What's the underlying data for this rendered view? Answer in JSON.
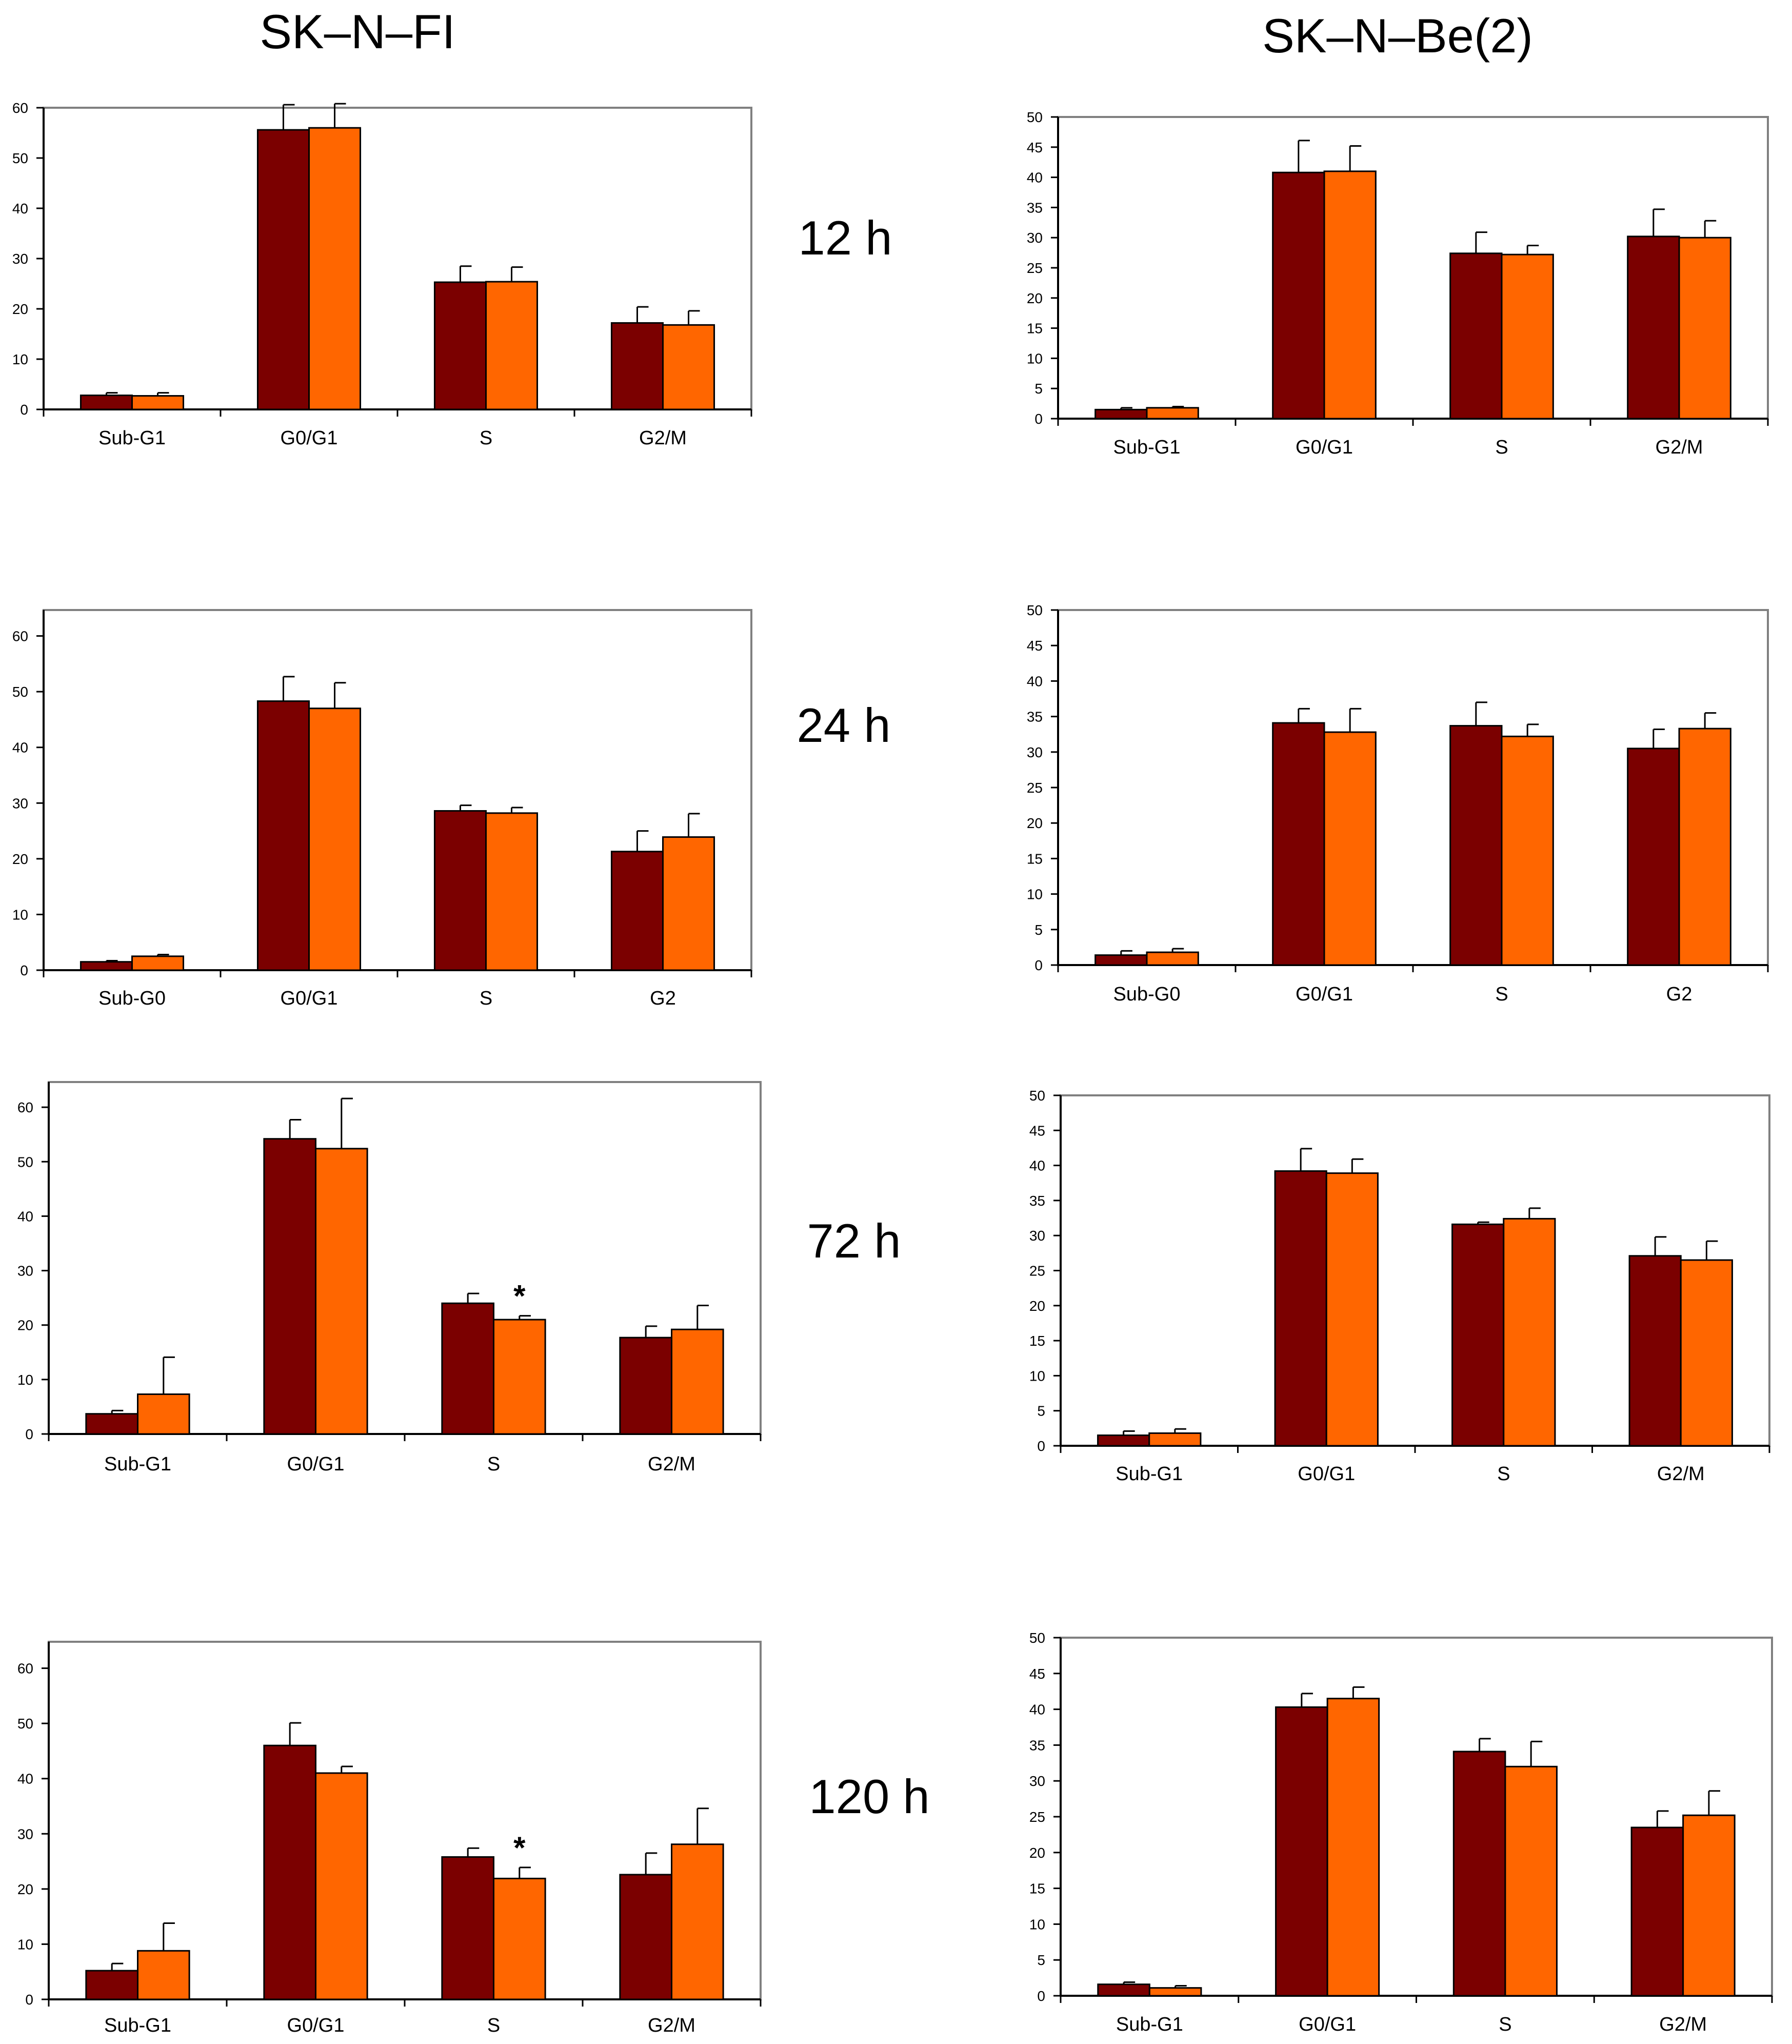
{
  "headers": {
    "left_title": "SK–N–FI",
    "right_title": "SK–N–Be(2)",
    "time_labels": [
      "12 h",
      "24 h",
      "72 h",
      "120 h"
    ]
  },
  "colors": {
    "series_a": "#7b0000",
    "series_b": "#ff6600",
    "axis": "#000000",
    "frame": "#808080"
  },
  "chart_data": [
    {
      "type": "bar",
      "panel": "SK–N–FI 12 h",
      "title": "",
      "xlabel": "",
      "ylabel": "",
      "ylim": [
        0,
        60
      ],
      "yticks": [
        0,
        10,
        20,
        30,
        40,
        50,
        60
      ],
      "categories": [
        "Sub-G1",
        "G0/G1",
        "S",
        "G2/M"
      ],
      "series": [
        {
          "name": "series 1 (dark red)",
          "values": [
            2.8,
            55.6,
            25.3,
            17.2
          ],
          "errors": [
            0.5,
            5.0,
            3.2,
            3.2
          ]
        },
        {
          "name": "series 2 (orange)",
          "values": [
            2.7,
            56.0,
            25.4,
            16.8
          ],
          "errors": [
            0.6,
            4.8,
            2.9,
            2.8
          ]
        }
      ],
      "annotations": []
    },
    {
      "type": "bar",
      "panel": "SK–N–Be(2) 12 h",
      "title": "",
      "xlabel": "",
      "ylabel": "",
      "ylim": [
        0,
        50
      ],
      "yticks": [
        0,
        5,
        10,
        15,
        20,
        25,
        30,
        35,
        40,
        45,
        50
      ],
      "categories": [
        "Sub-G1",
        "G0/G1",
        "S",
        "G2/M"
      ],
      "series": [
        {
          "name": "series 1 (dark red)",
          "values": [
            1.5,
            40.8,
            27.4,
            30.2
          ],
          "errors": [
            0.3,
            5.3,
            3.5,
            4.5
          ]
        },
        {
          "name": "series 2 (orange)",
          "values": [
            1.8,
            41.0,
            27.2,
            30.0
          ],
          "errors": [
            0.2,
            4.2,
            1.5,
            2.8
          ]
        }
      ],
      "annotations": []
    },
    {
      "type": "bar",
      "panel": "SK–N–FI 24 h",
      "title": "",
      "xlabel": "",
      "ylabel": "",
      "ylim": [
        0,
        65
      ],
      "yticks": [
        0,
        10,
        20,
        30,
        40,
        50,
        60
      ],
      "categories": [
        "Sub-G0",
        "G0/G1",
        "S",
        "G2"
      ],
      "series": [
        {
          "name": "series 1 (dark red)",
          "values": [
            1.5,
            48.3,
            28.6,
            21.3
          ],
          "errors": [
            0.2,
            4.4,
            1.0,
            3.7
          ]
        },
        {
          "name": "series 2 (orange)",
          "values": [
            2.5,
            47.0,
            28.2,
            23.9
          ],
          "errors": [
            0.3,
            4.6,
            1.0,
            4.2
          ]
        }
      ],
      "annotations": []
    },
    {
      "type": "bar",
      "panel": "SK–N–Be(2) 24 h",
      "title": "",
      "xlabel": "",
      "ylabel": "",
      "ylim": [
        0,
        50
      ],
      "yticks": [
        0,
        5,
        10,
        15,
        20,
        25,
        30,
        35,
        40,
        45,
        50
      ],
      "categories": [
        "Sub-G0",
        "G0/G1",
        "S",
        "G2"
      ],
      "series": [
        {
          "name": "series 1 (dark red)",
          "values": [
            1.4,
            34.1,
            33.7,
            30.5
          ],
          "errors": [
            0.6,
            2.0,
            3.3,
            2.7
          ]
        },
        {
          "name": "series 2 (orange)",
          "values": [
            1.8,
            32.8,
            32.2,
            33.3
          ],
          "errors": [
            0.5,
            3.3,
            1.7,
            2.2
          ]
        }
      ],
      "annotations": []
    },
    {
      "type": "bar",
      "panel": "SK–N–FI 72 h",
      "title": "",
      "xlabel": "",
      "ylabel": "",
      "ylim": [
        0,
        65
      ],
      "yticks": [
        0,
        10,
        20,
        30,
        40,
        50,
        60
      ],
      "categories": [
        "Sub-G1",
        "G0/G1",
        "S",
        "G2/M"
      ],
      "series": [
        {
          "name": "series 1 (dark red)",
          "values": [
            3.7,
            54.2,
            24.0,
            17.7
          ],
          "errors": [
            0.6,
            3.5,
            1.8,
            2.1
          ]
        },
        {
          "name": "series 2 (orange)",
          "values": [
            7.3,
            52.4,
            21.0,
            19.2
          ],
          "errors": [
            6.8,
            9.2,
            0.7,
            4.4
          ]
        }
      ],
      "annotations": [
        {
          "category": "S",
          "series": 1,
          "text": "*"
        }
      ]
    },
    {
      "type": "bar",
      "panel": "SK–N–Be(2) 72 h",
      "title": "",
      "xlabel": "",
      "ylabel": "",
      "ylim": [
        0,
        50
      ],
      "yticks": [
        0,
        5,
        10,
        15,
        20,
        25,
        30,
        35,
        40,
        45,
        50
      ],
      "categories": [
        "Sub-G1",
        "G0/G1",
        "S",
        "G2/M"
      ],
      "series": [
        {
          "name": "series 1 (dark red)",
          "values": [
            1.5,
            39.2,
            31.6,
            27.1
          ],
          "errors": [
            0.6,
            3.2,
            0.3,
            2.7
          ]
        },
        {
          "name": "series 2 (orange)",
          "values": [
            1.8,
            38.9,
            32.4,
            26.5
          ],
          "errors": [
            0.6,
            2.0,
            1.5,
            2.7
          ]
        }
      ],
      "annotations": []
    },
    {
      "type": "bar",
      "panel": "SK–N–FI 120 h",
      "title": "",
      "xlabel": "",
      "ylabel": "",
      "ylim": [
        0,
        65
      ],
      "yticks": [
        0,
        10,
        20,
        30,
        40,
        50,
        60
      ],
      "categories": [
        "Sub-G1",
        "G0/G1",
        "S",
        "G2/M"
      ],
      "series": [
        {
          "name": "series 1 (dark red)",
          "values": [
            5.2,
            46.0,
            25.8,
            22.6
          ],
          "errors": [
            1.3,
            4.1,
            1.6,
            3.9
          ]
        },
        {
          "name": "series 2 (orange)",
          "values": [
            8.8,
            41.0,
            21.9,
            28.1
          ],
          "errors": [
            5.0,
            1.2,
            2.0,
            6.5
          ]
        }
      ],
      "annotations": [
        {
          "category": "S",
          "series": 1,
          "text": "*"
        }
      ]
    },
    {
      "type": "bar",
      "panel": "SK–N–Be(2) 120 h",
      "title": "",
      "xlabel": "",
      "ylabel": "",
      "ylim": [
        0,
        50
      ],
      "yticks": [
        0,
        5,
        10,
        15,
        20,
        25,
        30,
        35,
        40,
        45,
        50
      ],
      "categories": [
        "Sub-G1",
        "G0/G1",
        "S",
        "G2/M"
      ],
      "series": [
        {
          "name": "series 1 (dark red)",
          "values": [
            1.6,
            40.3,
            34.1,
            23.5
          ],
          "errors": [
            0.3,
            1.9,
            1.8,
            2.3
          ]
        },
        {
          "name": "series 2 (orange)",
          "values": [
            1.1,
            41.5,
            32.0,
            25.2
          ],
          "errors": [
            0.3,
            1.6,
            3.5,
            3.4
          ]
        }
      ],
      "annotations": []
    }
  ]
}
